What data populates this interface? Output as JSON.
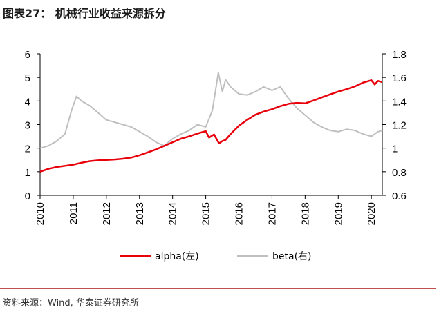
{
  "header": {
    "title": "图表27：  机械行业收益来源拆分"
  },
  "footer": {
    "source": "资料来源：Wind, 华泰证券研究所"
  },
  "colors": {
    "alpha": "#e8000b",
    "beta": "#bfbfbf",
    "accent_rule": "#c0504d"
  },
  "chart_data": {
    "type": "line",
    "title": "机械行业收益来源拆分",
    "x_ticks": [
      "2010",
      "2011",
      "2012",
      "2013",
      "2014",
      "2015",
      "2016",
      "2017",
      "2018",
      "2019",
      "2020"
    ],
    "x_range": [
      2010.0,
      2020.33
    ],
    "y_left": {
      "range": [
        0,
        6
      ],
      "ticks": [
        "0",
        "1",
        "2",
        "3",
        "4",
        "5",
        "6"
      ]
    },
    "y_right": {
      "range": [
        0.6,
        1.8
      ],
      "ticks": [
        "0.6",
        "0.8",
        "1",
        "1.2",
        "1.4",
        "1.6",
        "1.8"
      ]
    },
    "series": [
      {
        "name": "alpha(左)",
        "axis": "left",
        "x": [
          2010.0,
          2010.25,
          2010.5,
          2010.75,
          2011.0,
          2011.25,
          2011.5,
          2011.75,
          2012.0,
          2012.25,
          2012.5,
          2012.75,
          2013.0,
          2013.25,
          2013.5,
          2013.75,
          2014.0,
          2014.25,
          2014.5,
          2014.75,
          2015.0,
          2015.1,
          2015.25,
          2015.4,
          2015.5,
          2015.6,
          2015.75,
          2016.0,
          2016.25,
          2016.5,
          2016.75,
          2017.0,
          2017.25,
          2017.5,
          2017.75,
          2018.0,
          2018.25,
          2018.5,
          2018.75,
          2019.0,
          2019.25,
          2019.5,
          2019.75,
          2020.0,
          2020.1,
          2020.2,
          2020.33
        ],
        "values": [
          1.0,
          1.12,
          1.2,
          1.25,
          1.3,
          1.38,
          1.45,
          1.48,
          1.5,
          1.52,
          1.55,
          1.6,
          1.7,
          1.82,
          1.95,
          2.1,
          2.25,
          2.4,
          2.5,
          2.62,
          2.72,
          2.45,
          2.58,
          2.2,
          2.3,
          2.35,
          2.6,
          2.95,
          3.2,
          3.42,
          3.55,
          3.65,
          3.78,
          3.88,
          3.92,
          3.9,
          4.02,
          4.15,
          4.28,
          4.4,
          4.5,
          4.62,
          4.78,
          4.88,
          4.7,
          4.85,
          4.8
        ]
      },
      {
        "name": "beta(右)",
        "axis": "right",
        "x": [
          2010.0,
          2010.25,
          2010.5,
          2010.75,
          2010.95,
          2011.1,
          2011.25,
          2011.5,
          2011.75,
          2012.0,
          2012.25,
          2012.5,
          2012.75,
          2013.0,
          2013.25,
          2013.5,
          2013.75,
          2014.0,
          2014.25,
          2014.5,
          2014.75,
          2015.0,
          2015.2,
          2015.38,
          2015.5,
          2015.6,
          2015.75,
          2016.0,
          2016.25,
          2016.5,
          2016.75,
          2017.0,
          2017.25,
          2017.5,
          2017.75,
          2018.0,
          2018.25,
          2018.5,
          2018.75,
          2019.0,
          2019.25,
          2019.5,
          2019.75,
          2020.0,
          2020.1,
          2020.2,
          2020.33
        ],
        "values": [
          1.0,
          1.02,
          1.06,
          1.12,
          1.32,
          1.44,
          1.4,
          1.36,
          1.3,
          1.24,
          1.22,
          1.2,
          1.18,
          1.14,
          1.1,
          1.05,
          1.02,
          1.08,
          1.12,
          1.15,
          1.2,
          1.18,
          1.32,
          1.64,
          1.48,
          1.58,
          1.52,
          1.46,
          1.45,
          1.48,
          1.52,
          1.49,
          1.52,
          1.42,
          1.34,
          1.28,
          1.22,
          1.18,
          1.15,
          1.14,
          1.16,
          1.15,
          1.12,
          1.1,
          1.12,
          1.14,
          1.15
        ]
      }
    ],
    "legend": {
      "position": "bottom"
    }
  }
}
